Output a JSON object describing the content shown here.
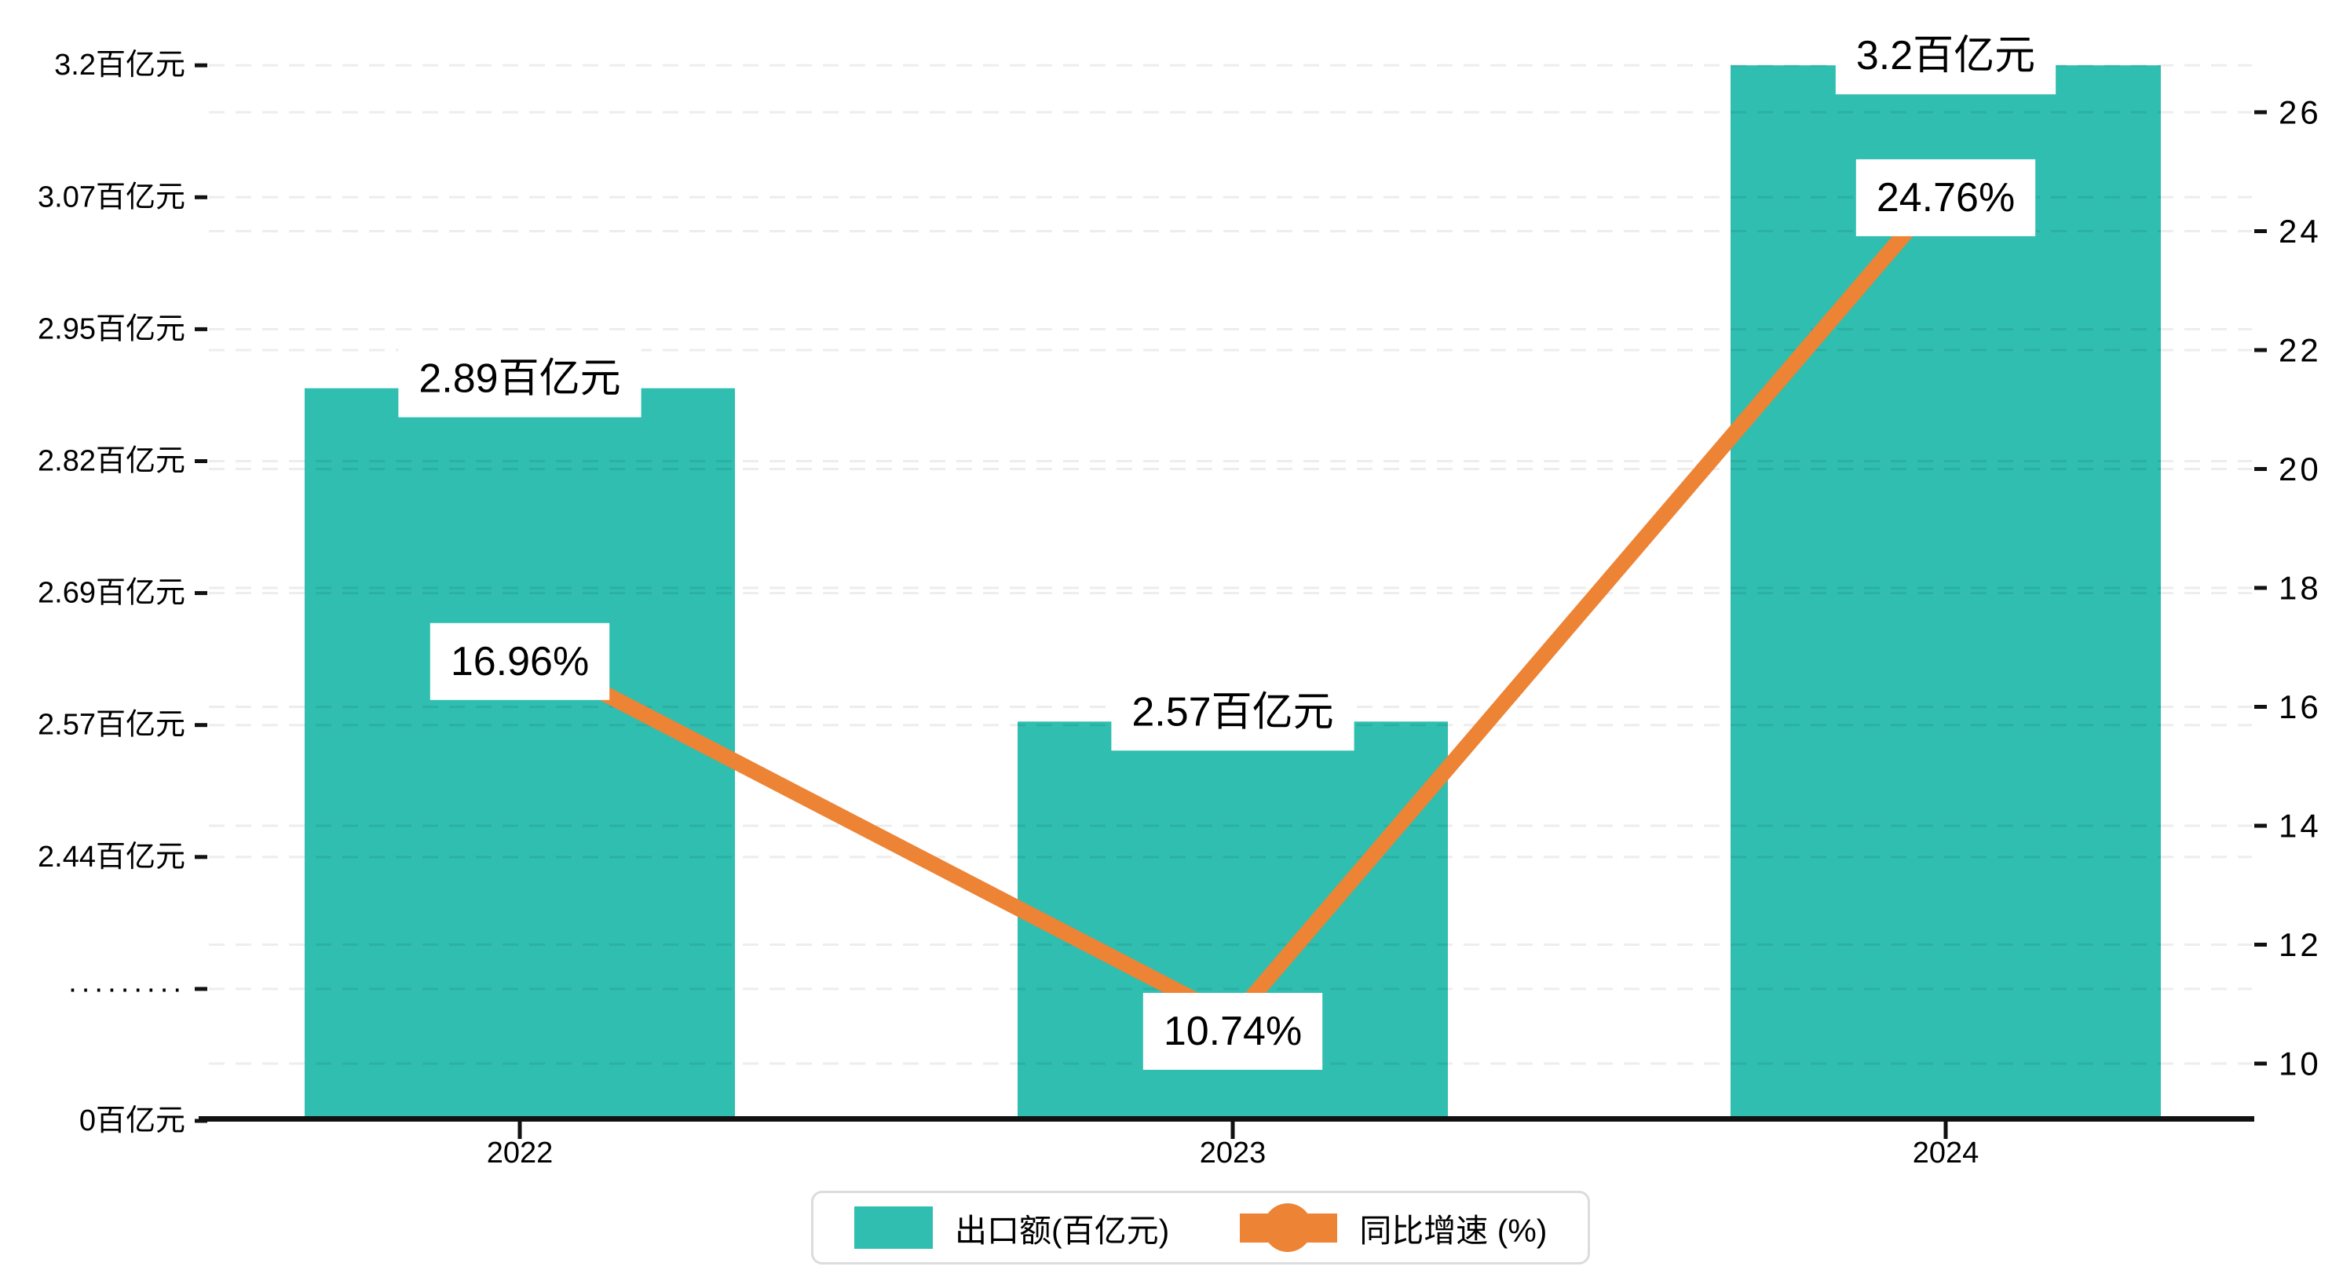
{
  "chart_data": {
    "type": "bar",
    "subtype": "combo-bar-line-dual-axis",
    "categories": [
      "2022",
      "2023",
      "2024"
    ],
    "series": [
      {
        "name": "出口额(百亿元)",
        "type": "bar",
        "axis": "left",
        "values": [
          2.89,
          2.57,
          3.2
        ],
        "data_labels": [
          "2.89百亿元",
          "2.57百亿元",
          "3.2百亿元"
        ],
        "color": "#2FBEB0"
      },
      {
        "name": "同比增速 (%)",
        "type": "line",
        "axis": "right",
        "values": [
          16.96,
          10.74,
          24.76
        ],
        "data_labels": [
          "16.96%",
          "10.74%",
          "24.76%"
        ],
        "color": "#ED8335"
      }
    ],
    "left_axis": {
      "unit": "百亿元",
      "broken_axis": true,
      "tick_labels_bottom_to_top": [
        "0百亿元",
        "·········",
        "2.44百亿元",
        "2.57百亿元",
        "2.69百亿元",
        "2.82百亿元",
        "2.95百亿元",
        "3.07百亿元",
        "3.2百亿元"
      ],
      "tick_values_bottom_to_top": [
        0,
        null,
        2.44,
        2.57,
        2.69,
        2.82,
        2.95,
        3.07,
        3.2
      ],
      "range": [
        0,
        3.2
      ]
    },
    "right_axis": {
      "unit": "%",
      "ticks": [
        10,
        12,
        14,
        16,
        18,
        20,
        22,
        24,
        26
      ],
      "range": [
        10,
        26
      ]
    },
    "legend": {
      "position": "bottom",
      "items": [
        {
          "label": "出口额(百亿元)",
          "marker": "square",
          "color": "#2FBEB0"
        },
        {
          "label": "同比增速 (%)",
          "marker": "line-dot",
          "color": "#ED8335"
        }
      ]
    },
    "grid": {
      "horizontal_dashed": true
    },
    "colors": {
      "bar": "#2FBEB0",
      "line": "#ED8335",
      "axis": "#111111",
      "tick_text": "#000000",
      "label_text": "#000000",
      "label_bg": "#ffffff",
      "gridline": "rgba(0,0,0,0.07)",
      "legend_border": "#dcdcdc",
      "background": "#ffffff"
    }
  }
}
